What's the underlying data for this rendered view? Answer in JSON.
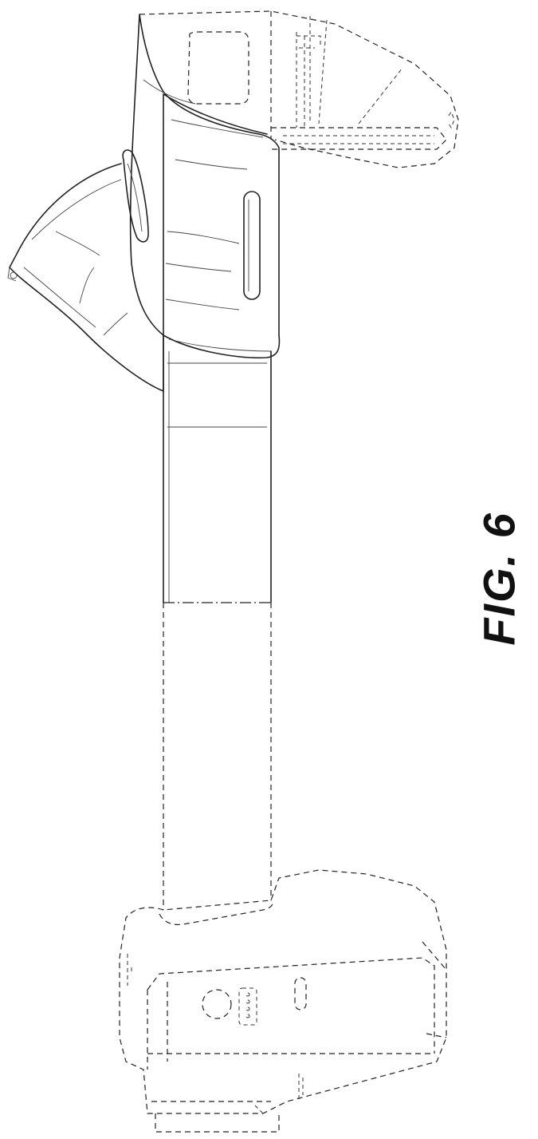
{
  "figure": {
    "label": "FIG. 6"
  },
  "style": {
    "line_color": "#222222",
    "background": "#ffffff"
  }
}
